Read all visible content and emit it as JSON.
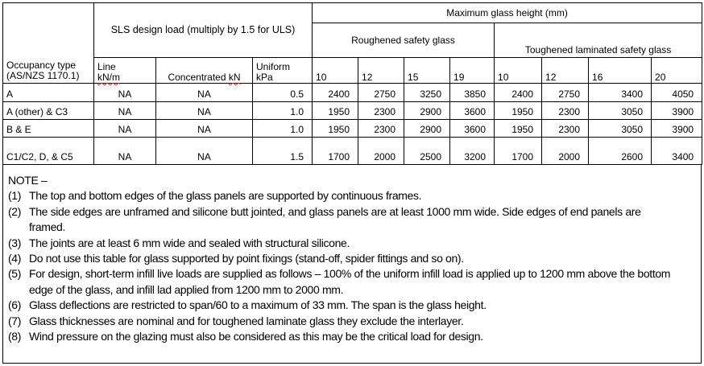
{
  "table": {
    "occupancy_header": "Occupancy type (AS/NZS 1170.1)",
    "sls_header": "SLS design load (multiply by 1.5 for ULS)",
    "max_height_header": "Maximum glass height (mm)",
    "roughened_header": "Roughened safety glass",
    "toughened_header": "Toughened laminated safety glass",
    "line_label": "Line",
    "line_unit": "kN/m",
    "conc_label": "Concentrated ",
    "conc_unit": "kN",
    "uniform_label": "Uniform",
    "uniform_unit": "kPa",
    "thicknesses": [
      "10",
      "12",
      "15",
      "19",
      "10",
      "12",
      "16",
      "20"
    ],
    "rows": [
      {
        "occupancy": "A",
        "line": "NA",
        "concentrated": "NA",
        "uniform": "0.5",
        "values": [
          "2400",
          "2750",
          "3250",
          "3850",
          "2400",
          "2750",
          "3400",
          "4050"
        ]
      },
      {
        "occupancy": "A (other) & C3",
        "line": "NA",
        "concentrated": "NA",
        "uniform": "1.0",
        "values": [
          "1950",
          "2300",
          "2900",
          "3600",
          "1950",
          "2300",
          "3050",
          "3900"
        ]
      },
      {
        "occupancy": "B & E",
        "line": "NA",
        "concentrated": "NA",
        "uniform": "1.0",
        "values": [
          "1950",
          "2300",
          "2900",
          "3600",
          "1950",
          "2300",
          "3050",
          "3900"
        ]
      },
      {
        "occupancy": "C1/C2, D, & C5",
        "line": "NA",
        "concentrated": "NA",
        "uniform": "1.5",
        "values": [
          "1700",
          "2000",
          "2500",
          "3200",
          "1700",
          "2000",
          "2600",
          "3400"
        ]
      }
    ]
  },
  "notes": {
    "title": "NOTE –",
    "items": [
      {
        "num": "(1)",
        "text": "The top and bottom edges of the glass panels are supported by continuous frames."
      },
      {
        "num": "(2)",
        "text": "The side edges are unframed and silicone butt jointed, and glass panels are at least 1000 mm wide. Side edges of end panels are framed."
      },
      {
        "num": "(3)",
        "text": "The joints are at least 6 mm wide and sealed with structural silicone."
      },
      {
        "num": "(4)",
        "text": "Do not use this table for glass supported by point fixings (stand-off, spider fittings and so on)."
      },
      {
        "num": "(5)",
        "text": "For design, short-term infill live loads are supplied as follows – 100% of the uniform infill load is applied up to 1200 mm above the bottom edge of the glass, and infill lad applied from 1200 mm to 2000 mm."
      },
      {
        "num": "(6)",
        "text": "Glass deflections are restricted to span/60 to a maximum of 33 mm. The span is the glass height."
      },
      {
        "num": "(7)",
        "text": "Glass thicknesses are nominal and for toughened laminate glass they exclude the interlayer."
      },
      {
        "num": "(8)",
        "text": "Wind pressure on the glazing must also be considered as this may be the critical load for design."
      }
    ]
  }
}
